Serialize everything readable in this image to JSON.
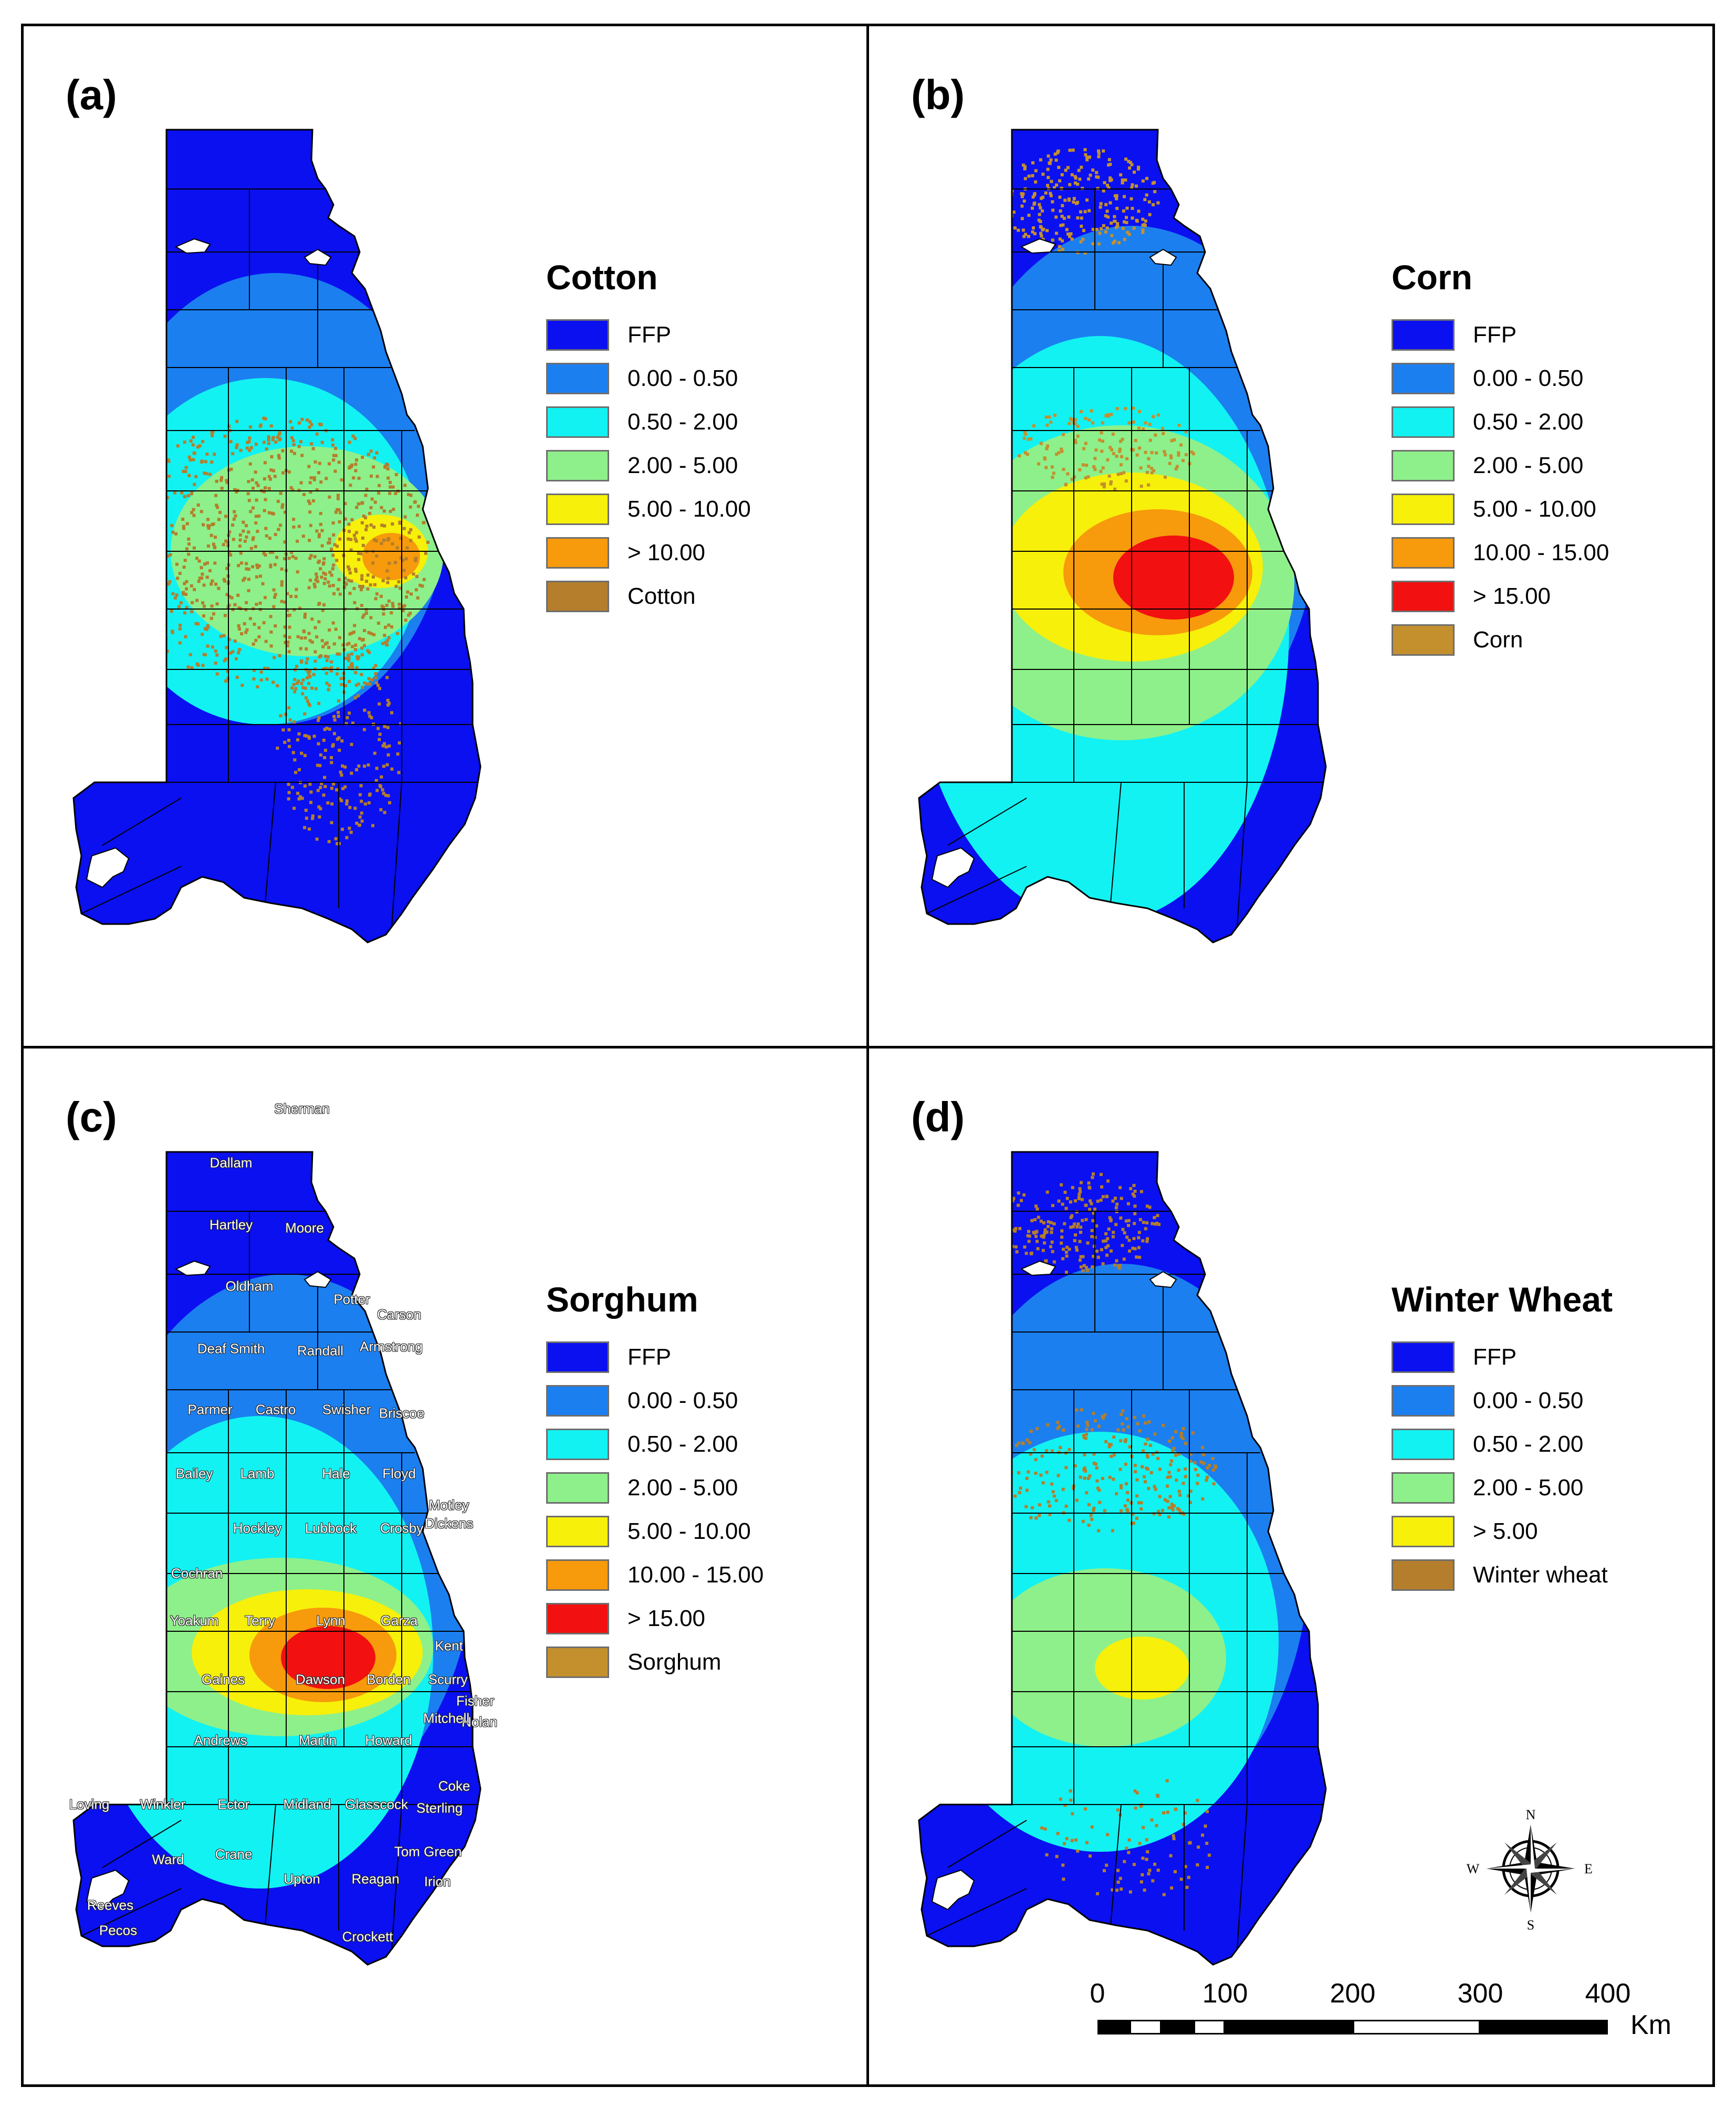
{
  "panels": [
    {
      "label": "(a)",
      "title": "Cotton",
      "legend": [
        {
          "text": "FFP",
          "color": "#0a10f0"
        },
        {
          "text": "0.00 - 0.50",
          "color": "#1b7ff0"
        },
        {
          "text": "0.50 - 2.00",
          "color": "#12f2f2"
        },
        {
          "text": "2.00 - 5.00",
          "color": "#8ef08a"
        },
        {
          "text": "5.00 - 10.00",
          "color": "#f7f00a"
        },
        {
          "text": "> 10.00",
          "color": "#f79a0c"
        },
        {
          "text": "Cotton",
          "color": "#b47e2c"
        }
      ]
    },
    {
      "label": "(b)",
      "title": "Corn",
      "legend": [
        {
          "text": "FFP",
          "color": "#0a10f0"
        },
        {
          "text": "0.00 - 0.50",
          "color": "#1b7ff0"
        },
        {
          "text": "0.50 - 2.00",
          "color": "#12f2f2"
        },
        {
          "text": "2.00 - 5.00",
          "color": "#8ef08a"
        },
        {
          "text": "5.00 - 10.00",
          "color": "#f7f00a"
        },
        {
          "text": "10.00 - 15.00",
          "color": "#f79a0c"
        },
        {
          "text": "> 15.00",
          "color": "#f21010"
        },
        {
          "text": "Corn",
          "color": "#c4902e"
        }
      ]
    },
    {
      "label": "(c)",
      "title": "Sorghum",
      "legend": [
        {
          "text": "FFP",
          "color": "#0a10f0"
        },
        {
          "text": "0.00 - 0.50",
          "color": "#1b7ff0"
        },
        {
          "text": "0.50 - 2.00",
          "color": "#12f2f2"
        },
        {
          "text": "2.00 - 5.00",
          "color": "#8ef08a"
        },
        {
          "text": "5.00 - 10.00",
          "color": "#f7f00a"
        },
        {
          "text": "10.00 - 15.00",
          "color": "#f79a0c"
        },
        {
          "text": "> 15.00",
          "color": "#f21010"
        },
        {
          "text": "Sorghum",
          "color": "#c4902e"
        }
      ],
      "counties": [
        "Sherman",
        "Dallam",
        "Hartley",
        "Moore",
        "Oldham",
        "Potter",
        "Carson",
        "Deaf Smith",
        "Randall",
        "Armstrong",
        "Parmer",
        "Castro",
        "Swisher",
        "Briscoe",
        "Bailey",
        "Lamb",
        "Hale",
        "Floyd",
        "Motley",
        "Dickens",
        "Hockley",
        "Lubbock",
        "Crosby",
        "Cochran",
        "Yoakum",
        "Terry",
        "Lynn",
        "Garza",
        "Kent",
        "Gaines",
        "Dawson",
        "Borden",
        "Scurry",
        "Fisher",
        "Nolan",
        "Andrews",
        "Martin",
        "Howard",
        "Mitchell",
        "Coke",
        "Loving",
        "Winkler",
        "Ector",
        "Midland",
        "Glasscock",
        "Sterling",
        "Ward",
        "Crane",
        "Tom Green",
        "Upton",
        "Reagan",
        "Irion",
        "Reeves",
        "Pecos",
        "Crockett"
      ]
    },
    {
      "label": "(d)",
      "title": "Winter Wheat",
      "legend": [
        {
          "text": "FFP",
          "color": "#0a10f0"
        },
        {
          "text": "0.00 - 0.50",
          "color": "#1b7ff0"
        },
        {
          "text": "0.50 - 2.00",
          "color": "#12f2f2"
        },
        {
          "text": "2.00 - 5.00",
          "color": "#8ef08a"
        },
        {
          "text": "> 5.00",
          "color": "#f7f00a"
        },
        {
          "text": "Winter wheat",
          "color": "#b47e2c"
        }
      ]
    }
  ],
  "compass": {
    "n": "N",
    "s": "S",
    "e": "E",
    "w": "W"
  },
  "scale": {
    "ticks": [
      "0",
      "100",
      "200",
      "300",
      "400"
    ],
    "unit": "Km"
  }
}
